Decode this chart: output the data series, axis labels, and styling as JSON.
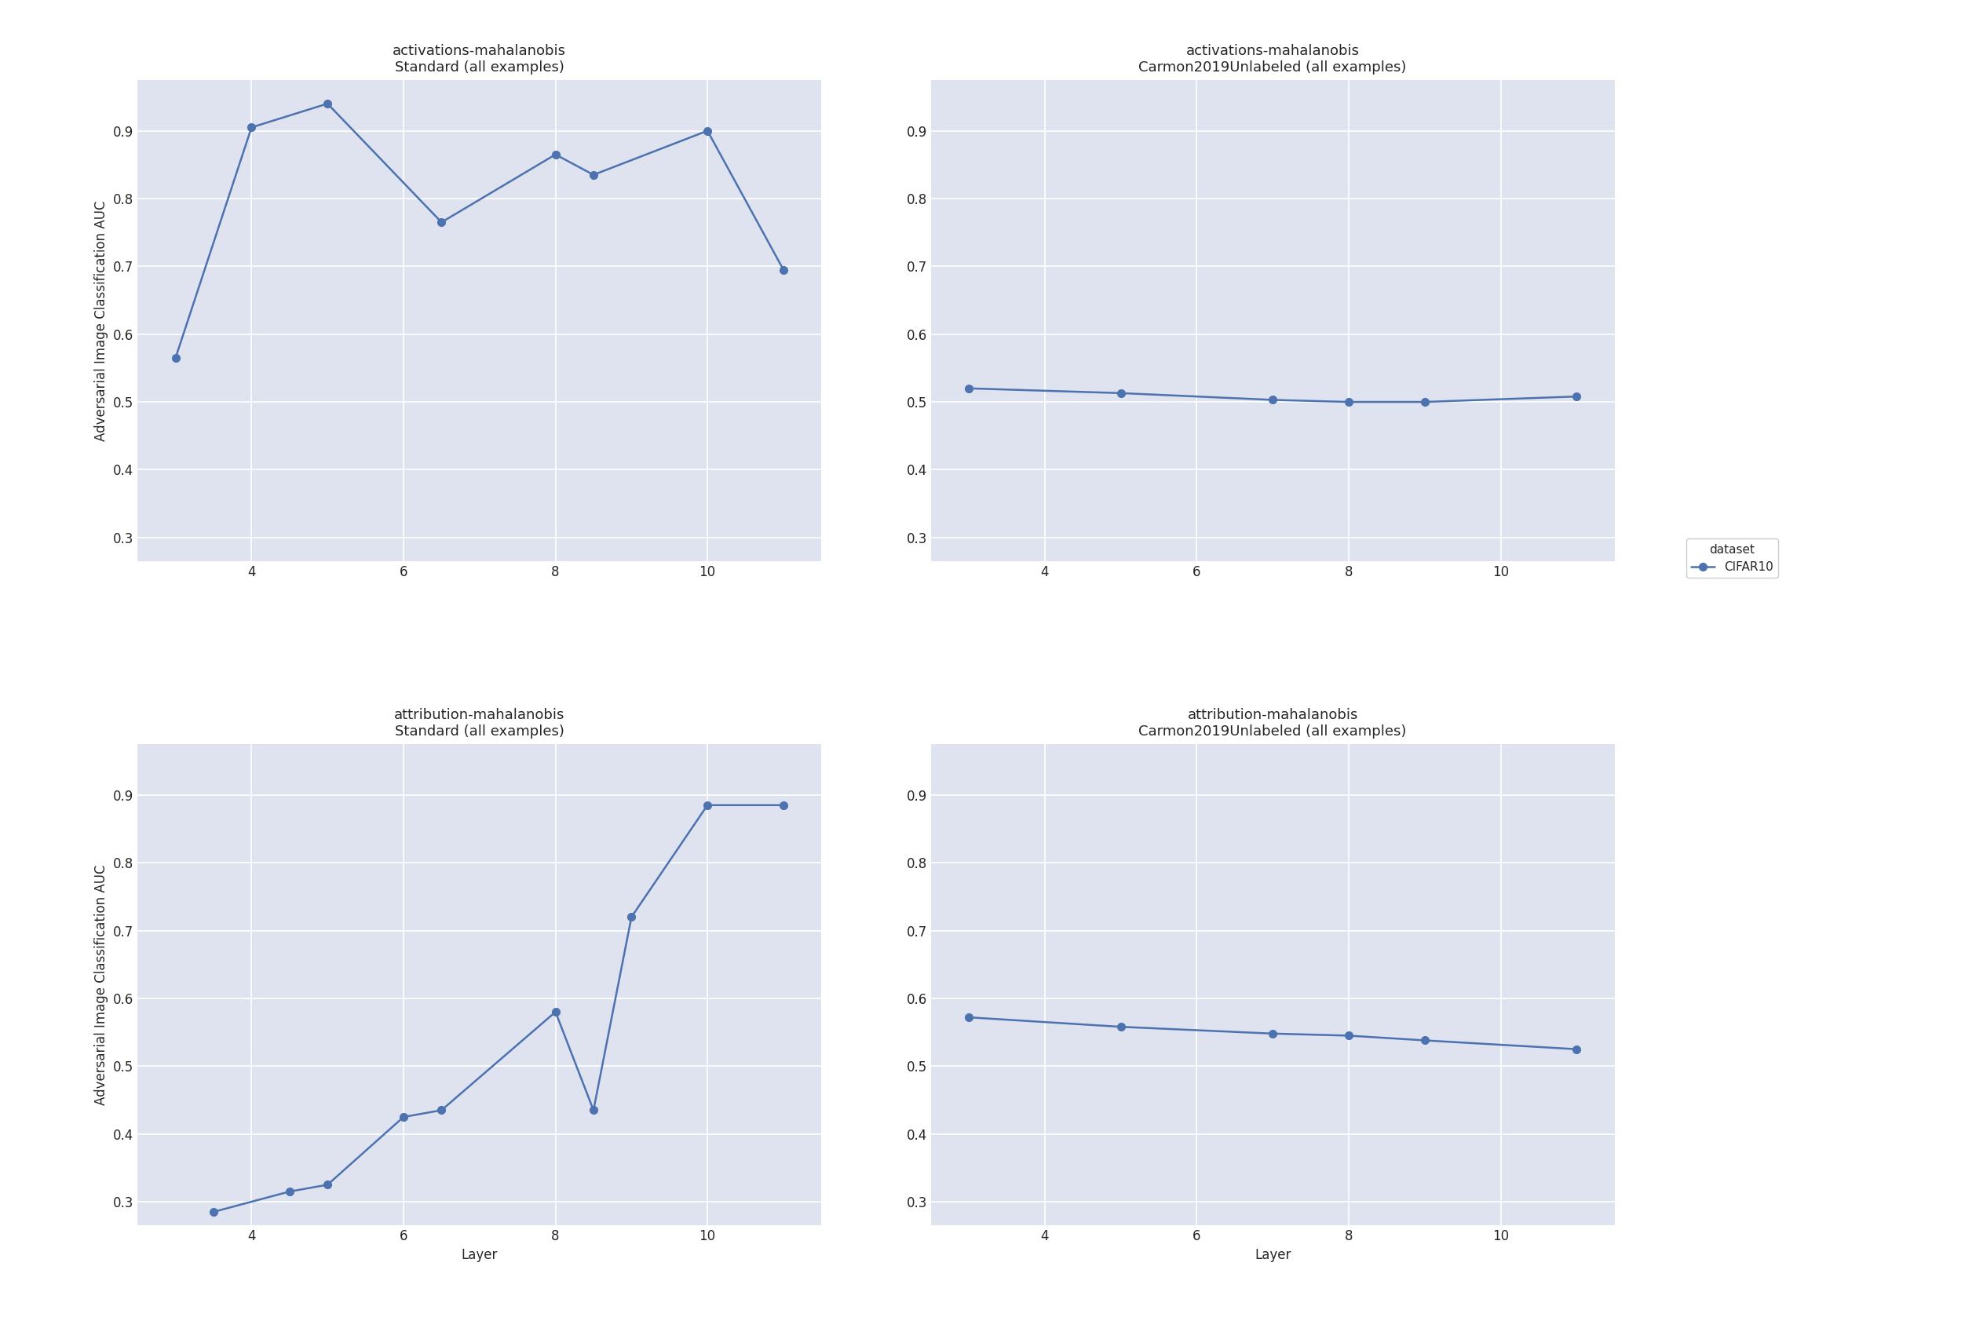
{
  "subplots": [
    {
      "title": "activations-mahalanobis\nStandard (all examples)",
      "x": [
        3,
        4,
        5,
        6.5,
        8,
        8.5,
        10,
        11
      ],
      "y": [
        0.565,
        0.905,
        0.94,
        0.765,
        0.865,
        0.835,
        0.9,
        0.695
      ],
      "xlim": [
        2.5,
        11.5
      ],
      "ylim": [
        0.265,
        0.975
      ],
      "yticks": [
        0.3,
        0.4,
        0.5,
        0.6,
        0.7,
        0.8,
        0.9
      ]
    },
    {
      "title": "activations-mahalanobis\nCarmon2019Unlabeled (all examples)",
      "x": [
        3,
        5,
        7,
        8,
        9,
        11
      ],
      "y": [
        0.52,
        0.513,
        0.503,
        0.5,
        0.5,
        0.508
      ],
      "xlim": [
        2.5,
        11.5
      ],
      "ylim": [
        0.265,
        0.975
      ],
      "yticks": [
        0.3,
        0.4,
        0.5,
        0.6,
        0.7,
        0.8,
        0.9
      ]
    },
    {
      "title": "attribution-mahalanobis\nStandard (all examples)",
      "x": [
        3.5,
        4.5,
        5,
        6,
        6.5,
        8,
        8.5,
        9,
        10,
        11
      ],
      "y": [
        0.285,
        0.315,
        0.325,
        0.425,
        0.435,
        0.58,
        0.435,
        0.72,
        0.885,
        0.885
      ],
      "xlim": [
        2.5,
        11.5
      ],
      "ylim": [
        0.265,
        0.975
      ],
      "yticks": [
        0.3,
        0.4,
        0.5,
        0.6,
        0.7,
        0.8,
        0.9
      ]
    },
    {
      "title": "attribution-mahalanobis\nCarmon2019Unlabeled (all examples)",
      "x": [
        3,
        5,
        7,
        8,
        9,
        11
      ],
      "y": [
        0.572,
        0.558,
        0.548,
        0.545,
        0.538,
        0.525
      ],
      "xlim": [
        2.5,
        11.5
      ],
      "ylim": [
        0.265,
        0.975
      ],
      "yticks": [
        0.3,
        0.4,
        0.5,
        0.6,
        0.7,
        0.8,
        0.9
      ]
    }
  ],
  "line_color": "#4c72b0",
  "marker": "o",
  "marker_size": 7,
  "line_width": 1.8,
  "xlabel": "Layer",
  "ylabel": "Adversarial Image Classification AUC",
  "legend_label": "CIFAR10",
  "legend_title": "dataset",
  "background_color": "#dfe2ef",
  "fig_background": "#ffffff",
  "grid_color": "#ffffff",
  "xticks": [
    4,
    6,
    8,
    10
  ],
  "tick_fontsize": 12,
  "label_fontsize": 12,
  "title_fontsize": 13
}
